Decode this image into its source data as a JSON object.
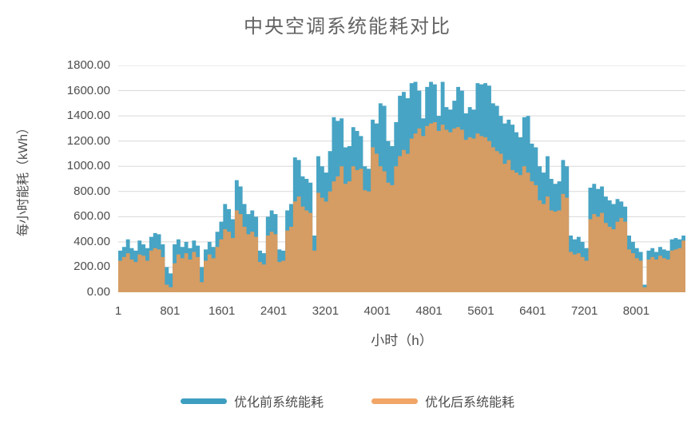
{
  "title": "中央空调系统能耗对比",
  "colors": {
    "series_before_fill": "#47A4C4",
    "series_after_fill": "#D59C63",
    "legend_before": "#3D9EC0",
    "legend_after": "#F1A567",
    "gridline": "#D9D9D9",
    "axis_line": "#BFBFBF",
    "text": "#4d4d4d",
    "title_text": "#636363",
    "background": "#ffffff"
  },
  "chart_data": {
    "type": "area",
    "title": "中央空调系统能耗对比",
    "xlabel": "小时（h）",
    "ylabel": "每小时能耗（kWh）",
    "xlim": [
      1,
      8760
    ],
    "ylim": [
      0,
      1800
    ],
    "grid": "horizontal",
    "legend_position": "bottom",
    "y_tick_values": [
      0,
      200,
      400,
      600,
      800,
      1000,
      1200,
      1400,
      1600,
      1800
    ],
    "y_tick_labels": [
      "0.00",
      "200.00",
      "400.00",
      "600.00",
      "800.00",
      "1000.00",
      "1200.00",
      "1400.00",
      "1600.00",
      "1800.00"
    ],
    "x_tick_values": [
      1,
      801,
      1601,
      2401,
      3201,
      4001,
      4801,
      5601,
      6401,
      7201,
      8001
    ],
    "x_tick_labels": [
      "1",
      "801",
      "1601",
      "2401",
      "3201",
      "4001",
      "4801",
      "5601",
      "6401",
      "7201",
      "8001"
    ],
    "x_start": 1,
    "x_step": 60,
    "series": [
      {
        "name": "优化前系统能耗",
        "color": "#47A4C4",
        "legend_color": "#3D9EC0",
        "values": [
          330,
          360,
          420,
          350,
          330,
          410,
          380,
          350,
          440,
          470,
          460,
          380,
          200,
          150,
          380,
          420,
          360,
          400,
          350,
          410,
          370,
          200,
          340,
          400,
          360,
          480,
          560,
          700,
          660,
          580,
          890,
          840,
          700,
          620,
          650,
          600,
          330,
          310,
          600,
          650,
          620,
          340,
          330,
          650,
          700,
          1070,
          1050,
          920,
          900,
          870,
          450,
          1080,
          1000,
          950,
          1120,
          1390,
          1360,
          1380,
          1150,
          1160,
          1310,
          1280,
          1240,
          1000,
          980,
          1370,
          1340,
          1500,
          1480,
          1200,
          1160,
          1350,
          1560,
          1590,
          1540,
          1660,
          1670,
          1600,
          1380,
          1630,
          1670,
          1650,
          1400,
          1670,
          1470,
          1450,
          1520,
          1630,
          1600,
          1420,
          1470,
          1450,
          1660,
          1650,
          1660,
          1640,
          1500,
          1480,
          1400,
          1340,
          1370,
          1330,
          1270,
          1230,
          1390,
          1400,
          1180,
          1150,
          1000,
          950,
          1080,
          900,
          860,
          880,
          1050,
          1000,
          450,
          420,
          440,
          400,
          350,
          830,
          860,
          820,
          840,
          760,
          730,
          700,
          740,
          720,
          680,
          450,
          400,
          350,
          320,
          60,
          330,
          350,
          320,
          360,
          340,
          330,
          420,
          430,
          420,
          450
        ]
      },
      {
        "name": "优化后系统能耗",
        "color": "#D59C63",
        "legend_color": "#F1A567",
        "values": [
          250,
          280,
          310,
          260,
          240,
          300,
          290,
          250,
          330,
          350,
          340,
          280,
          60,
          40,
          230,
          300,
          270,
          310,
          260,
          320,
          280,
          80,
          250,
          300,
          270,
          360,
          420,
          500,
          480,
          430,
          650,
          620,
          520,
          460,
          480,
          440,
          240,
          220,
          450,
          480,
          460,
          240,
          250,
          490,
          520,
          720,
          760,
          680,
          650,
          630,
          330,
          790,
          750,
          720,
          800,
          880,
          920,
          1000,
          860,
          880,
          1000,
          970,
          980,
          810,
          800,
          1150,
          1100,
          1000,
          960,
          870,
          850,
          1000,
          1080,
          1130,
          1100,
          1220,
          1260,
          1300,
          1240,
          1320,
          1340,
          1350,
          1280,
          1330,
          1290,
          1270,
          1300,
          1310,
          1290,
          1210,
          1230,
          1220,
          1260,
          1240,
          1230,
          1200,
          1150,
          1120,
          1100,
          1020,
          1050,
          970,
          950,
          930,
          1000,
          950,
          880,
          850,
          730,
          700,
          760,
          650,
          640,
          650,
          780,
          750,
          320,
          300,
          310,
          280,
          250,
          580,
          620,
          600,
          630,
          550,
          520,
          500,
          560,
          590,
          560,
          340,
          310,
          270,
          250,
          40,
          260,
          280,
          260,
          290,
          270,
          260,
          330,
          340,
          350,
          410
        ]
      }
    ]
  }
}
